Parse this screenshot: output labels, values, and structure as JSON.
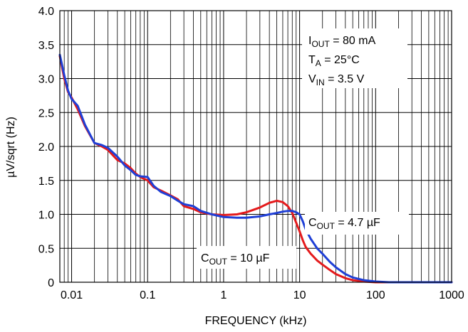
{
  "chart_data": {
    "type": "line",
    "title": "",
    "xlabel": "FREQUENCY (kHz)",
    "ylabel": "µV/sqrt (Hz)",
    "xscale": "log",
    "xlim": [
      0.007,
      1000
    ],
    "ylim": [
      0,
      4.0
    ],
    "grid": true,
    "xtick_labels": [
      "0.01",
      "0.1",
      "1",
      "10",
      "100",
      "1000"
    ],
    "xtick_values": [
      0.01,
      0.1,
      1,
      10,
      100,
      1000
    ],
    "ytick_labels": [
      "0",
      "0.5",
      "1.0",
      "1.5",
      "2.0",
      "2.5",
      "3.0",
      "3.5",
      "4.0"
    ],
    "ytick_values": [
      0,
      0.5,
      1.0,
      1.5,
      2.0,
      2.5,
      3.0,
      3.5,
      4.0
    ],
    "conditions": {
      "iout": {
        "main": "I",
        "sub": "OUT",
        "rest": " = 80 mA"
      },
      "ta": {
        "main": "T",
        "sub": "A",
        "rest": " = 25°C"
      },
      "vin": {
        "main": "V",
        "sub": "IN",
        "rest": " = 3.5 V"
      }
    },
    "series": [
      {
        "name": "COUT = 10 µF",
        "label": {
          "main": "C",
          "sub": "OUT",
          "rest": " = 10 µF"
        },
        "color": "#e41a1c",
        "x": [
          0.007,
          0.008,
          0.009,
          0.01,
          0.012,
          0.015,
          0.02,
          0.025,
          0.03,
          0.04,
          0.05,
          0.06,
          0.07,
          0.08,
          0.1,
          0.12,
          0.15,
          0.2,
          0.25,
          0.3,
          0.4,
          0.5,
          0.7,
          1,
          1.5,
          2,
          3,
          4,
          5,
          6,
          7,
          8,
          9,
          10,
          11,
          12,
          14,
          17,
          20,
          25,
          30,
          40,
          50,
          70,
          100,
          150,
          200,
          300,
          1000
        ],
        "y": [
          3.33,
          3.0,
          2.8,
          2.72,
          2.55,
          2.3,
          2.05,
          2.0,
          1.95,
          1.8,
          1.75,
          1.68,
          1.6,
          1.55,
          1.5,
          1.4,
          1.35,
          1.28,
          1.22,
          1.12,
          1.08,
          1.03,
          1.0,
          0.99,
          1.0,
          1.03,
          1.1,
          1.17,
          1.2,
          1.18,
          1.12,
          1.02,
          0.88,
          0.75,
          0.62,
          0.52,
          0.42,
          0.32,
          0.26,
          0.18,
          0.12,
          0.06,
          0.03,
          0.01,
          0.0,
          0.0,
          0.0,
          0.0,
          0.0
        ]
      },
      {
        "name": "COUT = 4.7 µF",
        "label": {
          "main": "C",
          "sub": "OUT",
          "rest": " = 4.7 µF"
        },
        "color": "#1f3fd6",
        "x": [
          0.007,
          0.008,
          0.009,
          0.01,
          0.012,
          0.015,
          0.02,
          0.025,
          0.03,
          0.04,
          0.05,
          0.06,
          0.07,
          0.08,
          0.1,
          0.12,
          0.15,
          0.2,
          0.25,
          0.3,
          0.4,
          0.5,
          0.7,
          1,
          1.5,
          2,
          3,
          4,
          5,
          6,
          7,
          8,
          9,
          10,
          11,
          12,
          14,
          17,
          20,
          25,
          30,
          40,
          50,
          70,
          100,
          150,
          200,
          300,
          1000
        ],
        "y": [
          3.35,
          3.05,
          2.82,
          2.7,
          2.6,
          2.32,
          2.05,
          2.02,
          1.98,
          1.85,
          1.72,
          1.65,
          1.58,
          1.56,
          1.55,
          1.42,
          1.33,
          1.27,
          1.2,
          1.15,
          1.12,
          1.05,
          1.0,
          0.96,
          0.95,
          0.95,
          0.97,
          1.0,
          1.02,
          1.04,
          1.05,
          1.05,
          1.03,
          1.0,
          0.9,
          0.78,
          0.64,
          0.5,
          0.42,
          0.3,
          0.22,
          0.12,
          0.07,
          0.03,
          0.01,
          0.0,
          0.0,
          0.0,
          0.0
        ]
      }
    ]
  }
}
